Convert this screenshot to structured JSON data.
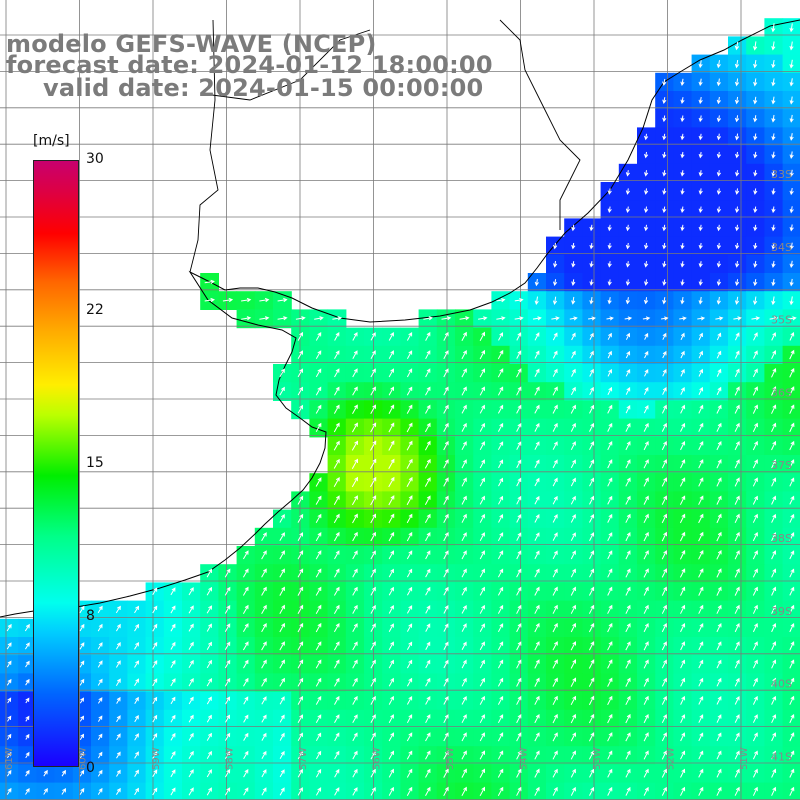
{
  "title": {
    "line1": "modelo GEFS-WAVE (NCEP)",
    "line2": "forecast date: 2024-01-12 18:00:00",
    "line3": "valid date: 2024-01-15 00:00:00"
  },
  "colorbar": {
    "unit": "[m/s]",
    "ticks": [
      "30",
      "22",
      "15",
      "8",
      "0"
    ],
    "tick_values": [
      30,
      22,
      15,
      8,
      0
    ],
    "range": [
      0,
      30
    ],
    "colors": [
      "#1a00ff",
      "#00ffee",
      "#00ee00",
      "#ffee00",
      "#ff0000",
      "#c8006e"
    ]
  },
  "map": {
    "land_color": "#ffffff",
    "grid_color": "#7a7a7a",
    "coast_color": "#000000",
    "arrow_color": "#ffffff",
    "lat_labels": [
      "33S",
      "34S",
      "35S",
      "36S",
      "37S",
      "38S",
      "39S",
      "40S",
      "41S"
    ],
    "lon_labels": [
      "61W",
      "60W",
      "59W",
      "58W",
      "57W",
      "56W",
      "55W",
      "54W",
      "53W",
      "52W",
      "51W"
    ]
  }
}
